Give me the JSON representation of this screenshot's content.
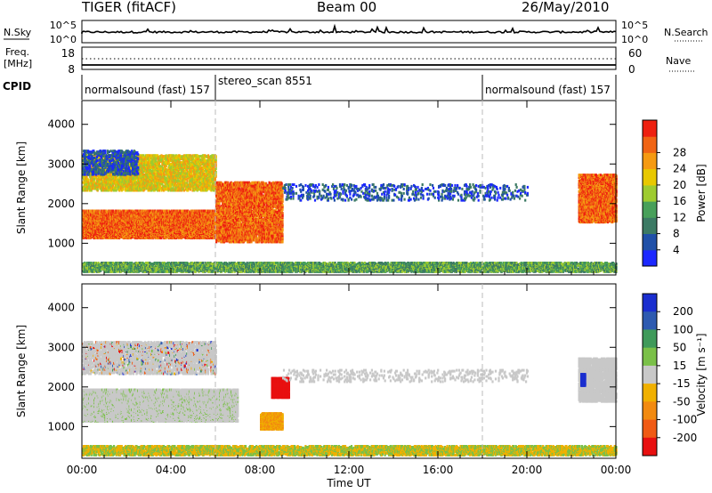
{
  "header": {
    "left": "TIGER (fitACF)",
    "center": "Beam 00",
    "right": "26/May/2010"
  },
  "labels": {
    "nsky": "N.Sky",
    "nsearch": "N.Search",
    "freq_line1": "Freq.",
    "freq_line2": "[MHz]",
    "nave": "Nave",
    "cpid": "CPID",
    "noise_left_ticks": [
      "10^5",
      "10^0"
    ],
    "noise_right_ticks": [
      "10^5",
      "10^0"
    ],
    "freq_left_ticks": [
      "18",
      "8"
    ],
    "freq_right_ticks": [
      "60",
      "0"
    ]
  },
  "cpid_segments": [
    {
      "label": "normalsound (fast) 157",
      "start_h": 0,
      "end_h": 6
    },
    {
      "label": "stereo_scan 8551",
      "start_h": 6,
      "end_h": 18
    },
    {
      "label": "normalsound (fast) 157",
      "start_h": 18,
      "end_h": 24
    }
  ],
  "chart_data": [
    {
      "type": "heatmap",
      "panel": "power",
      "ylabel": "Slant Range [km]",
      "xlabel": "",
      "x_ticks": [
        "00:00",
        "04:00",
        "08:00",
        "12:00",
        "16:00",
        "20:00",
        "00:00"
      ],
      "y_ticks": [
        1000,
        2000,
        3000,
        4000
      ],
      "ylim": [
        200,
        4600
      ],
      "xlim_hours": [
        0,
        24
      ],
      "colorbar": {
        "label": "Power [dB]",
        "ticks": [
          4,
          8,
          12,
          16,
          20,
          24,
          28
        ],
        "range": [
          0,
          32
        ],
        "colors": [
          "#1c28ff",
          "#2050a8",
          "#3c7a64",
          "#48a05a",
          "#9ecb30",
          "#e8c800",
          "#f59a12",
          "#f06414",
          "#ee2010"
        ]
      },
      "regions": [
        {
          "desc": "main band",
          "t": [
            0,
            7
          ],
          "r": [
            1100,
            1800
          ],
          "value": 22
        },
        {
          "desc": "upper band",
          "t": [
            0,
            6
          ],
          "r": [
            2300,
            3200
          ],
          "value": 16
        },
        {
          "desc": "patches",
          "t": [
            6,
            9
          ],
          "r": [
            1000,
            2500
          ],
          "value": 22
        },
        {
          "desc": "near-range",
          "t": [
            0,
            24
          ],
          "r": [
            200,
            500
          ],
          "value": 12
        },
        {
          "desc": "scatter mid",
          "t": [
            9,
            20
          ],
          "r": [
            2000,
            2500
          ],
          "value": 6
        },
        {
          "desc": "late echo",
          "t": [
            22.3,
            24
          ],
          "r": [
            1500,
            2700
          ],
          "value": 24
        }
      ]
    },
    {
      "type": "heatmap",
      "panel": "velocity",
      "ylabel": "Slant Range [km]",
      "xlabel": "Time UT",
      "x_ticks": [
        "00:00",
        "04:00",
        "08:00",
        "12:00",
        "16:00",
        "20:00",
        "00:00"
      ],
      "y_ticks": [
        1000,
        2000,
        3000,
        4000
      ],
      "ylim": [
        200,
        4600
      ],
      "xlim_hours": [
        0,
        24
      ],
      "colorbar": {
        "label": "Velocity [m s⁻¹]",
        "ticks": [
          200,
          100,
          50,
          15,
          -15,
          -50,
          -100,
          -200
        ],
        "colors": [
          "#1a2ecf",
          "#2d5ab0",
          "#3f9a5a",
          "#7ac048",
          "#c8c8c8",
          "#f0b000",
          "#f28a10",
          "#f05a14",
          "#e81010"
        ]
      },
      "regions": [
        {
          "desc": "main band",
          "t": [
            0,
            7
          ],
          "r": [
            1100,
            1800
          ],
          "value": 0
        },
        {
          "desc": "orange patch",
          "t": [
            8,
            9
          ],
          "r": [
            900,
            1300
          ],
          "value": -60
        },
        {
          "desc": "red patch",
          "t": [
            8.5,
            9.3
          ],
          "r": [
            1700,
            2200
          ],
          "value": -200
        },
        {
          "desc": "blue spot",
          "t": [
            22.4,
            22.6
          ],
          "r": [
            2000,
            2300
          ],
          "value": 200
        },
        {
          "desc": "near-range",
          "t": [
            0,
            24
          ],
          "r": [
            200,
            500
          ],
          "value": -60
        }
      ]
    }
  ]
}
